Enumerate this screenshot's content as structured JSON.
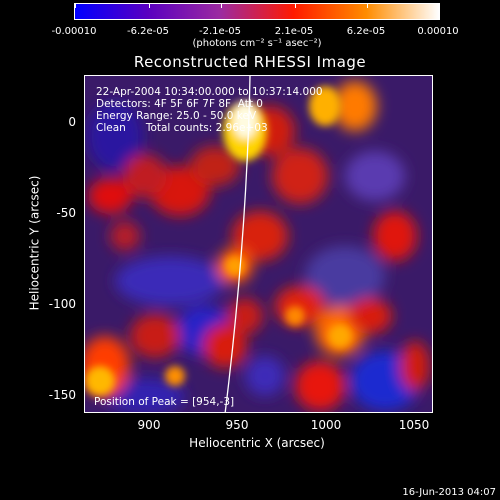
{
  "colorbar": {
    "labels": [
      "-0.00010",
      "-6.2e-05",
      "-2.1e-05",
      "2.1e-05",
      "6.2e-05",
      "0.00010"
    ],
    "units": "(photons cm⁻² s⁻¹ asec⁻²)",
    "colors": [
      "#0000ff",
      "#5a00c0",
      "#9c2aa0",
      "#ff1a00",
      "#ff8c00",
      "#ffffff"
    ]
  },
  "title": "Reconstructed RHESSI Image",
  "info": {
    "line1": "22-Apr-2004 10:34:00.000 to 10:37:14.000",
    "line2": "Detectors: 4F 5F 6F 7F 8F  Att 0",
    "line3": "Energy Range: 25.0 - 50.0 keV",
    "line4": "Clean      Total counts: 2.96e+03"
  },
  "peak": "Position of Peak = [954,-3]",
  "axes": {
    "xlabel": "Heliocentric X (arcsec)",
    "ylabel": "Heliocentric Y (arcsec)",
    "xticks": [
      "900",
      "950",
      "1000",
      "1050"
    ],
    "yticks": [
      "0",
      "-50",
      "-100",
      "-150"
    ]
  },
  "timestamp": "16-Jun-2013 04:07"
}
